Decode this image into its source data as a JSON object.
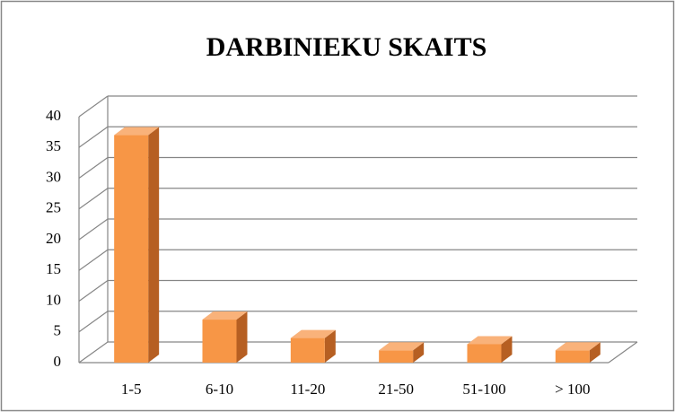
{
  "chart_data": {
    "type": "bar3d",
    "title": "DARBINIEKU SKAITS",
    "categories": [
      "1-5",
      "6-10",
      "11-20",
      "21-50",
      "51-100",
      "> 100"
    ],
    "values": [
      37,
      7,
      4,
      2,
      3,
      2
    ],
    "color": "#f79646",
    "ylim": [
      0,
      40
    ],
    "yticks": [
      0,
      5,
      10,
      15,
      20,
      25,
      30,
      35,
      40
    ],
    "grid": true
  }
}
